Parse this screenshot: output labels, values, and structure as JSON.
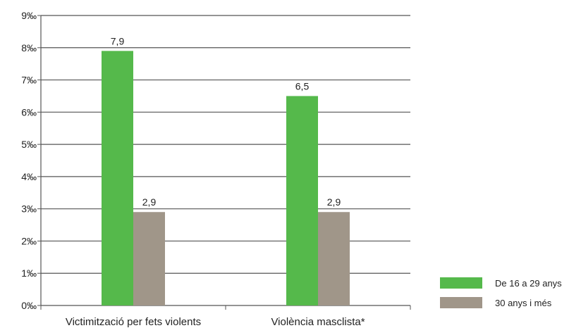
{
  "chart_data": {
    "type": "bar",
    "categories": [
      "Victimització per fets violents",
      "Violència masclista*"
    ],
    "series": [
      {
        "name": "De 16 a 29 anys",
        "values": [
          7.9,
          6.5
        ],
        "color": "#55b94b",
        "labels": [
          "7,9",
          "6,5"
        ]
      },
      {
        "name": "30 anys i més",
        "values": [
          2.9,
          2.9
        ],
        "color": "#a09689",
        "labels": [
          "2,9",
          "2,9"
        ]
      }
    ],
    "ylim": [
      0,
      9
    ],
    "yticks": [
      "0‰",
      "1‰",
      "2‰",
      "3‰",
      "4‰",
      "5‰",
      "6‰",
      "7‰",
      "8‰",
      "9‰"
    ],
    "grid": true,
    "legend_position": "bottom-right"
  }
}
